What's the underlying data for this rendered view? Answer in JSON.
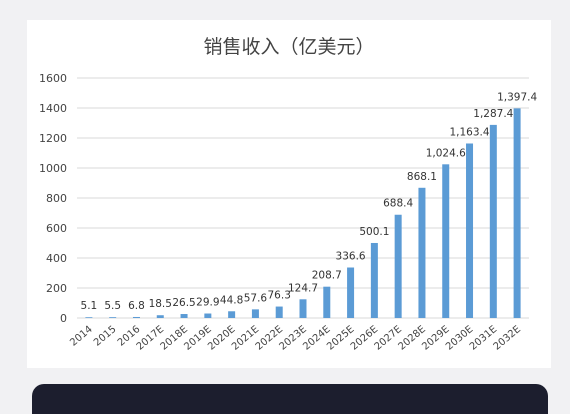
{
  "chart_data": {
    "type": "bar",
    "title": "销售收入（亿美元）",
    "categories": [
      "2014",
      "2015",
      "2016",
      "2017E",
      "2018E",
      "2019E",
      "2020E",
      "2021E",
      "2022E",
      "2023E",
      "2024E",
      "2025E",
      "2026E",
      "2027E",
      "2028E",
      "2029E",
      "2030E",
      "2031E",
      "2032E"
    ],
    "values": [
      5.1,
      5.5,
      6.8,
      18.5,
      26.5,
      29.9,
      44.8,
      57.6,
      76.3,
      124.7,
      208.7,
      336.6,
      500.1,
      688.4,
      868.1,
      1024.6,
      1163.4,
      1287.4,
      1397.4
    ],
    "value_labels": [
      "5.1",
      "5.5",
      "6.8",
      "18.5",
      "26.5",
      "29.9",
      "44.8",
      "57.6",
      "76.3",
      "124.7",
      "208.7",
      "336.6",
      "500.1",
      "688.4",
      "868.1",
      "1,024.6",
      "1,163.4",
      "1,287.4",
      "1,397.4"
    ],
    "y_ticks": [
      "0",
      "200",
      "400",
      "600",
      "800",
      "1000",
      "1200",
      "1400",
      "1600"
    ],
    "ylim": [
      0,
      1600
    ],
    "xlabel": "",
    "ylabel": "",
    "grid": true,
    "bar_color": "#5b9bd5",
    "grid_color": "#d9d9d9"
  }
}
